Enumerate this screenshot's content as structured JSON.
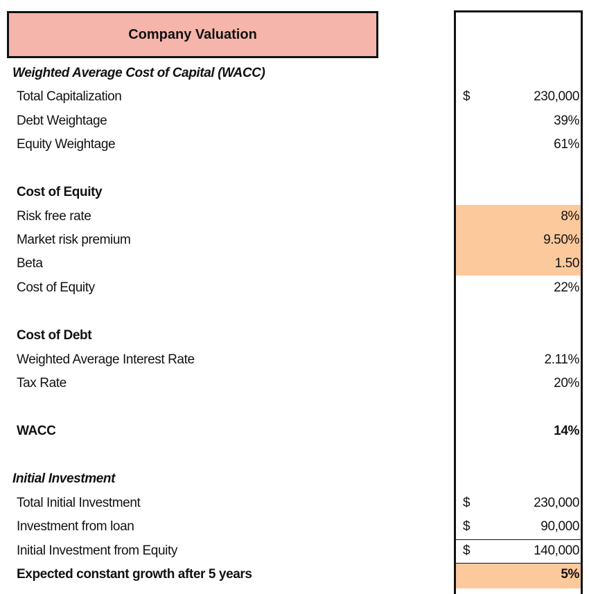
{
  "title": "Company Valuation",
  "wacc": {
    "heading": "Weighted Average Cost of Capital (WACC)",
    "rows": [
      {
        "label": "Total Capitalization",
        "currency": "$",
        "value": "230,000"
      },
      {
        "label": "Debt Weightage",
        "value": "39%"
      },
      {
        "label": "Equity Weightage",
        "value": "61%"
      }
    ]
  },
  "cost_of_equity": {
    "heading": "Cost of Equity",
    "rows": [
      {
        "label": "Risk free rate",
        "value": "8%"
      },
      {
        "label": "Market risk premium",
        "value": "9.50%"
      },
      {
        "label": "Beta",
        "value": "1.50"
      },
      {
        "label": "Cost of Equity",
        "value": "22%"
      }
    ]
  },
  "cost_of_debt": {
    "heading": "Cost of Debt",
    "rows": [
      {
        "label": "Weighted Average Interest Rate",
        "value": "2.11%"
      },
      {
        "label": "Tax Rate",
        "value": "20%"
      }
    ]
  },
  "wacc_result": {
    "label": "WACC",
    "value": "14%"
  },
  "initial_investment": {
    "heading": "Initial Investment",
    "rows": [
      {
        "label": "Total Initial Investment",
        "currency": "$",
        "value": "230,000"
      },
      {
        "label": "Investment from loan",
        "currency": "$",
        "value": "90,000"
      },
      {
        "label": "Initial Investment from Equity",
        "currency": "$",
        "value": "140,000"
      }
    ],
    "growth": {
      "label": "Expected constant growth after 5 years",
      "value": "5%"
    }
  }
}
